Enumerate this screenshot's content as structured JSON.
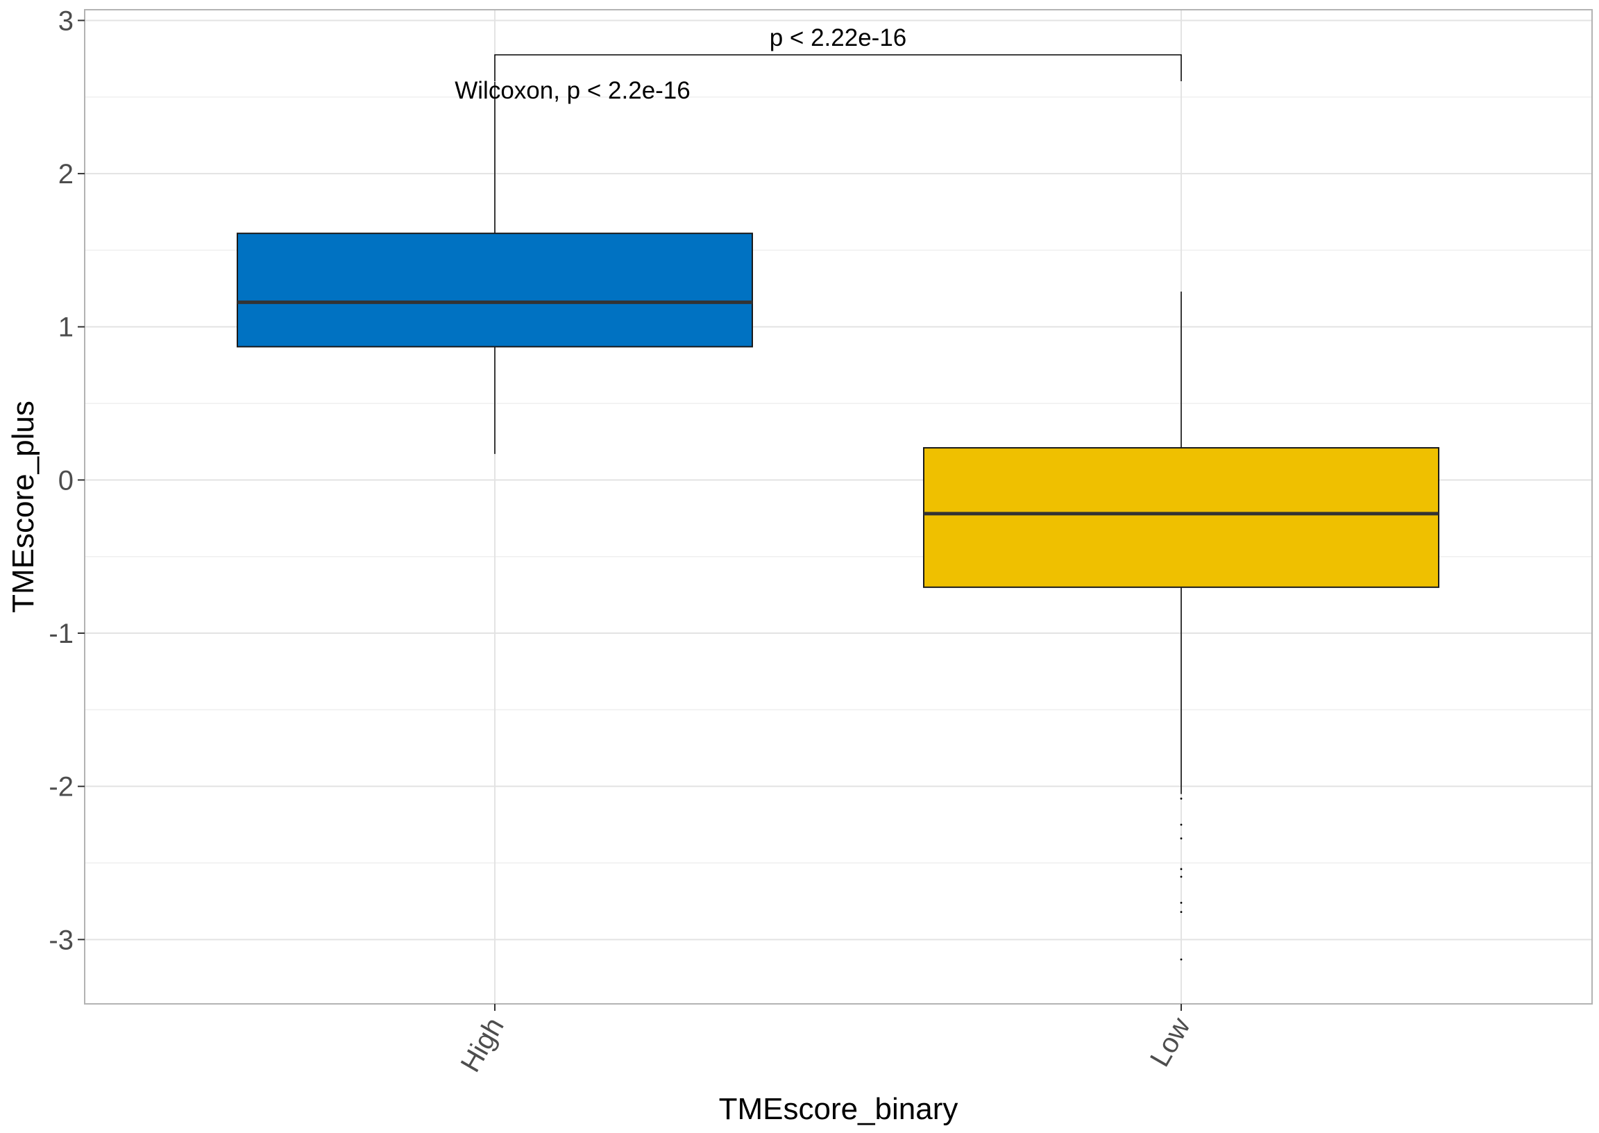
{
  "chart_data": {
    "type": "box",
    "xlabel": "TMEscore_binary",
    "ylabel": "TMEscore_plus",
    "categories": [
      "High",
      "Low"
    ],
    "ylim": [
      -3.42,
      3.07
    ],
    "yticks": [
      3,
      2,
      1,
      0,
      -1,
      -2,
      -3
    ],
    "ytick_labels": [
      "3",
      "2",
      "1",
      "0",
      "-1",
      "-2",
      "-3"
    ],
    "grid": true,
    "legend": "none",
    "boxes": [
      {
        "category": "High",
        "color": "#0072C2",
        "whisker_low": 0.17,
        "q1": 0.87,
        "median": 1.16,
        "q3": 1.61,
        "whisker_high": 2.6,
        "outliers": []
      },
      {
        "category": "Low",
        "color": "#EFC000",
        "whisker_low": -2.05,
        "q1": -0.7,
        "median": -0.22,
        "q3": 0.21,
        "whisker_high": 1.23,
        "outliers": [
          -2.08,
          -2.25,
          -2.34,
          -2.54,
          -2.59,
          -2.76,
          -2.82,
          -3.13
        ]
      }
    ],
    "annotations": {
      "test": "Wilcoxon, p < 2.2e-16",
      "comparison": "p < 2.22e-16"
    }
  }
}
